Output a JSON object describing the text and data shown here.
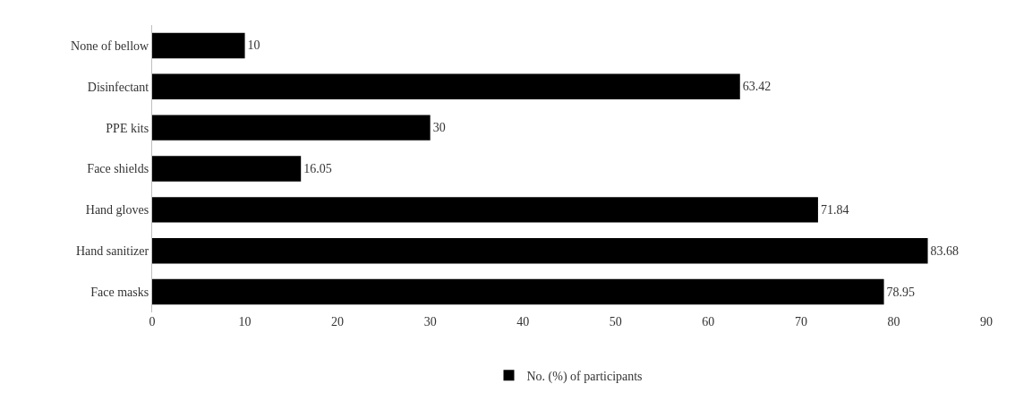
{
  "chart_data": {
    "type": "bar",
    "orientation": "horizontal",
    "categories": [
      "None of bellow",
      "Disinfectant",
      "PPE kits",
      "Face shields",
      "Hand gloves",
      "Hand sanitizer",
      "Face masks"
    ],
    "series": [
      {
        "name": "No. (%) of participants",
        "color": "#000000",
        "values": [
          10,
          63.42,
          30,
          16.05,
          71.84,
          83.68,
          78.95
        ]
      }
    ],
    "xlim": [
      0,
      90
    ],
    "xticks": [
      0,
      10,
      20,
      30,
      40,
      50,
      60,
      70,
      80,
      90
    ],
    "data_labels": true,
    "legend": "bottom"
  }
}
